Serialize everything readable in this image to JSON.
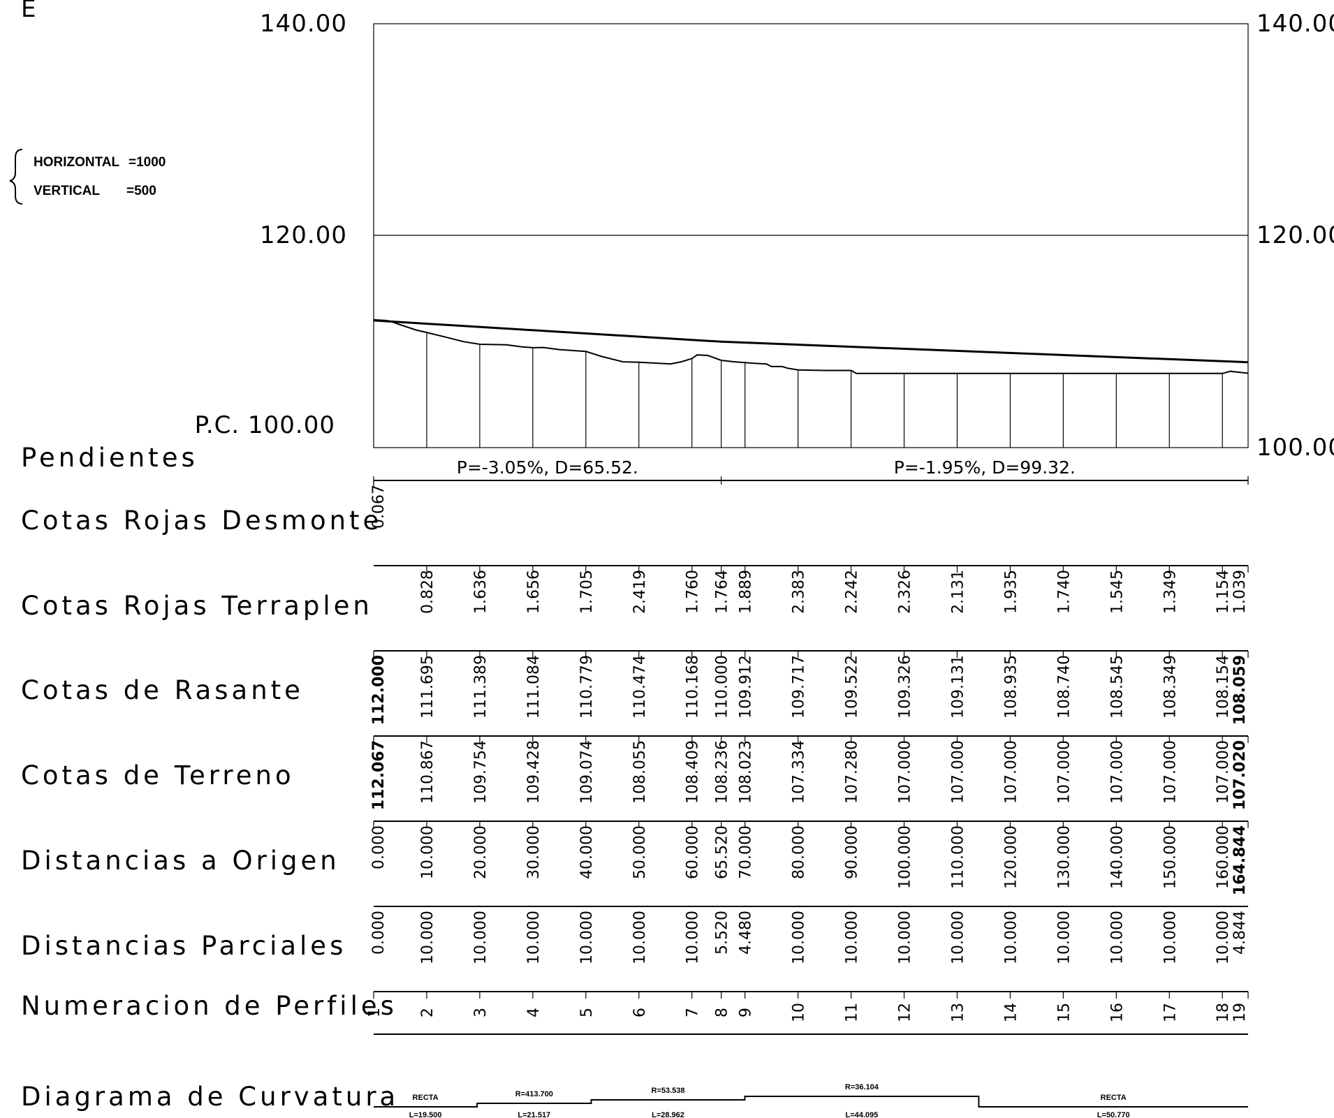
{
  "corner_letter": "E",
  "scale": {
    "horizontal_label": "HORIZONTAL",
    "horizontal_value": "=1000",
    "vertical_label": "VERTICAL",
    "vertical_value": "=500"
  },
  "elevation_labels": {
    "left_top": "140.00",
    "left_mid": "120.00",
    "left_bottom": "P.C. 100.00",
    "right_top": "140.00",
    "right_mid": "120.00",
    "right_bottom": "100.00"
  },
  "profile": {
    "datum": 100,
    "top": 140,
    "total_distance": 164.844,
    "terrain": [
      [
        0,
        112.067
      ],
      [
        2.2,
        112.0
      ],
      [
        3,
        111.95
      ],
      [
        5,
        111.6
      ],
      [
        8,
        111.1
      ],
      [
        10,
        110.867
      ],
      [
        13,
        110.5
      ],
      [
        17,
        110.0
      ],
      [
        20,
        109.754
      ],
      [
        25,
        109.7
      ],
      [
        28,
        109.5
      ],
      [
        30,
        109.428
      ],
      [
        32,
        109.45
      ],
      [
        35,
        109.25
      ],
      [
        40,
        109.074
      ],
      [
        43,
        108.6
      ],
      [
        47,
        108.1
      ],
      [
        50,
        108.055
      ],
      [
        54,
        107.95
      ],
      [
        56,
        107.9
      ],
      [
        58,
        108.1
      ],
      [
        60,
        108.409
      ],
      [
        61,
        108.75
      ],
      [
        63,
        108.7
      ],
      [
        65.52,
        108.236
      ],
      [
        68,
        108.1
      ],
      [
        70,
        108.023
      ],
      [
        72,
        107.95
      ],
      [
        74,
        107.9
      ],
      [
        75,
        107.65
      ],
      [
        77,
        107.65
      ],
      [
        78,
        107.5
      ],
      [
        80,
        107.334
      ],
      [
        85,
        107.28
      ],
      [
        90,
        107.28
      ],
      [
        91,
        107.0
      ],
      [
        100,
        107.0
      ],
      [
        110,
        107.0
      ],
      [
        120,
        107.0
      ],
      [
        130,
        107.0
      ],
      [
        140,
        107.0
      ],
      [
        150,
        107.0
      ],
      [
        160,
        107.0
      ],
      [
        161.5,
        107.2
      ],
      [
        164.844,
        107.02
      ]
    ],
    "grade_line": [
      [
        0,
        112.0
      ],
      [
        65.52,
        110.0
      ],
      [
        164.844,
        108.059
      ]
    ]
  },
  "rows": {
    "pendientes": "Pendientes",
    "desmonte": "Cotas Rojas Desmonte",
    "terraplen": "Cotas Rojas Terraplen",
    "rasante": "Cotas de Rasante",
    "terreno": "Cotas de Terreno",
    "origen": "Distancias a Origen",
    "parciales": "Distancias Parciales",
    "numeracion": "Numeracion de Perfiles",
    "curvatura": "Diagrama de Curvatura"
  },
  "slopes": [
    {
      "text": "P=-3.05%, D=65.52.",
      "from": 0,
      "to": 65.52
    },
    {
      "text": "P=-1.95%, D=99.32.",
      "from": 65.52,
      "to": 164.844
    }
  ],
  "stations": [
    {
      "num": "1",
      "d": 0,
      "desmonte": "0.067",
      "terraplen": "",
      "rasante": "112.000",
      "terreno": "112.067",
      "origen": "0.000",
      "parcial": "0.000",
      "bold": true
    },
    {
      "num": "2",
      "d": 10,
      "desmonte": "",
      "terraplen": "0.828",
      "rasante": "111.695",
      "terreno": "110.867",
      "origen": "10.000",
      "parcial": "10.000"
    },
    {
      "num": "3",
      "d": 20,
      "desmonte": "",
      "terraplen": "1.636",
      "rasante": "111.389",
      "terreno": "109.754",
      "origen": "20.000",
      "parcial": "10.000"
    },
    {
      "num": "4",
      "d": 30,
      "desmonte": "",
      "terraplen": "1.656",
      "rasante": "111.084",
      "terreno": "109.428",
      "origen": "30.000",
      "parcial": "10.000"
    },
    {
      "num": "5",
      "d": 40,
      "desmonte": "",
      "terraplen": "1.705",
      "rasante": "110.779",
      "terreno": "109.074",
      "origen": "40.000",
      "parcial": "10.000"
    },
    {
      "num": "6",
      "d": 50,
      "desmonte": "",
      "terraplen": "2.419",
      "rasante": "110.474",
      "terreno": "108.055",
      "origen": "50.000",
      "parcial": "10.000"
    },
    {
      "num": "7",
      "d": 60,
      "desmonte": "",
      "terraplen": "1.760",
      "rasante": "110.168",
      "terreno": "108.409",
      "origen": "60.000",
      "parcial": "10.000"
    },
    {
      "num": "8",
      "d": 65.52,
      "desmonte": "",
      "terraplen": "1.764",
      "rasante": "110.000",
      "terreno": "108.236",
      "origen": "65.520",
      "parcial": "5.520"
    },
    {
      "num": "9",
      "d": 70,
      "desmonte": "",
      "terraplen": "1.889",
      "rasante": "109.912",
      "terreno": "108.023",
      "origen": "70.000",
      "parcial": "4.480"
    },
    {
      "num": "10",
      "d": 80,
      "desmonte": "",
      "terraplen": "2.383",
      "rasante": "109.717",
      "terreno": "107.334",
      "origen": "80.000",
      "parcial": "10.000"
    },
    {
      "num": "11",
      "d": 90,
      "desmonte": "",
      "terraplen": "2.242",
      "rasante": "109.522",
      "terreno": "107.280",
      "origen": "90.000",
      "parcial": "10.000"
    },
    {
      "num": "12",
      "d": 100,
      "desmonte": "",
      "terraplen": "2.326",
      "rasante": "109.326",
      "terreno": "107.000",
      "origen": "100.000",
      "parcial": "10.000"
    },
    {
      "num": "13",
      "d": 110,
      "desmonte": "",
      "terraplen": "2.131",
      "rasante": "109.131",
      "terreno": "107.000",
      "origen": "110.000",
      "parcial": "10.000"
    },
    {
      "num": "14",
      "d": 120,
      "desmonte": "",
      "terraplen": "1.935",
      "rasante": "108.935",
      "terreno": "107.000",
      "origen": "120.000",
      "parcial": "10.000"
    },
    {
      "num": "15",
      "d": 130,
      "desmonte": "",
      "terraplen": "1.740",
      "rasante": "108.740",
      "terreno": "107.000",
      "origen": "130.000",
      "parcial": "10.000"
    },
    {
      "num": "16",
      "d": 140,
      "desmonte": "",
      "terraplen": "1.545",
      "rasante": "108.545",
      "terreno": "107.000",
      "origen": "140.000",
      "parcial": "10.000"
    },
    {
      "num": "17",
      "d": 150,
      "desmonte": "",
      "terraplen": "1.349",
      "rasante": "108.349",
      "terreno": "107.000",
      "origen": "150.000",
      "parcial": "10.000"
    },
    {
      "num": "18",
      "d": 160,
      "desmonte": "",
      "terraplen": "1.154",
      "rasante": "108.154",
      "terreno": "107.000",
      "origen": "160.000",
      "parcial": "10.000"
    },
    {
      "num": "19",
      "d": 164.844,
      "desmonte": "",
      "terraplen": "1.039",
      "rasante": "108.059",
      "terreno": "107.020",
      "origen": "164.844",
      "parcial": "4.844",
      "bold": true
    }
  ],
  "curvature": [
    {
      "from": 0,
      "to": 19.5,
      "level": 0,
      "top": "RECTA",
      "bottom": "L=19.500"
    },
    {
      "from": 19.5,
      "to": 41.017,
      "level": 1,
      "top": "R=413.700",
      "bottom": "L=21.517"
    },
    {
      "from": 41.017,
      "to": 69.979,
      "level": 2,
      "top": "R=53.538",
      "bottom": "L=28.962"
    },
    {
      "from": 69.979,
      "to": 114.074,
      "level": 3,
      "top": "R=36.104",
      "bottom": "L=44.095"
    },
    {
      "from": 114.074,
      "to": 164.844,
      "level": 0,
      "top": "RECTA",
      "bottom": "L=50.770"
    }
  ]
}
